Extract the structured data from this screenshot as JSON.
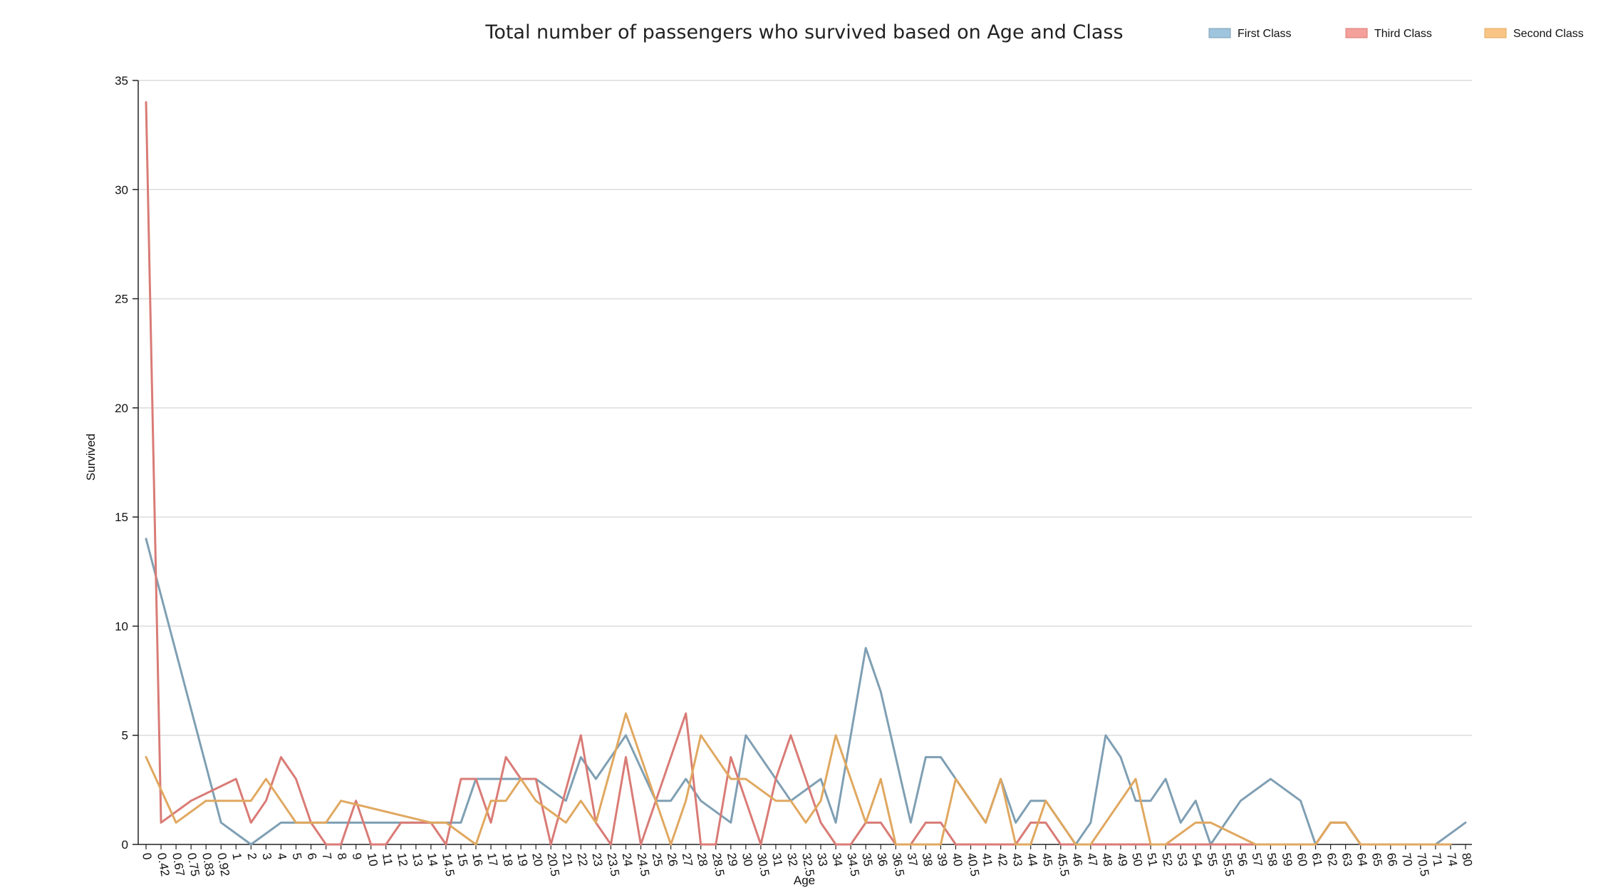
{
  "chart_data": {
    "type": "line",
    "title": "Total number of passengers who survived based on Age and Class",
    "xlabel": "Age",
    "ylabel": "Survived",
    "ylim": [
      0,
      35
    ],
    "yticks": [
      0,
      5,
      10,
      15,
      20,
      25,
      30,
      35
    ],
    "grid": "horizontal",
    "legend_position": "top-right",
    "categories": [
      "0",
      "0.42",
      "0.67",
      "0.75",
      "0.83",
      "0.92",
      "1",
      "2",
      "3",
      "4",
      "5",
      "6",
      "7",
      "8",
      "9",
      "10",
      "11",
      "12",
      "13",
      "14",
      "14.5",
      "15",
      "16",
      "17",
      "18",
      "19",
      "20",
      "20.5",
      "21",
      "22",
      "23",
      "23.5",
      "24",
      "24.5",
      "25",
      "26",
      "27",
      "28",
      "28.5",
      "29",
      "30",
      "30.5",
      "31",
      "32",
      "32.5",
      "33",
      "34",
      "34.5",
      "35",
      "36",
      "36.5",
      "37",
      "38",
      "39",
      "40",
      "40.5",
      "41",
      "42",
      "43",
      "44",
      "45",
      "45.5",
      "46",
      "47",
      "48",
      "49",
      "50",
      "51",
      "52",
      "53",
      "54",
      "55",
      "55.5",
      "56",
      "57",
      "58",
      "59",
      "60",
      "61",
      "62",
      "63",
      "64",
      "65",
      "66",
      "70",
      "70.5",
      "71",
      "74",
      "80"
    ],
    "series": [
      {
        "name": "First Class",
        "color": "#7f9fb3",
        "legend_color": "#9ec4de",
        "values": [
          14,
          null,
          null,
          null,
          null,
          1,
          null,
          0,
          null,
          1,
          1,
          1,
          1,
          1,
          1,
          1,
          1,
          1,
          1,
          1,
          1,
          1,
          3,
          3,
          3,
          3,
          3,
          null,
          2,
          4,
          3,
          null,
          5,
          null,
          2,
          2,
          3,
          2,
          null,
          1,
          5,
          null,
          null,
          2,
          null,
          3,
          1,
          null,
          9,
          7,
          null,
          1,
          4,
          4,
          3,
          null,
          1,
          3,
          1,
          2,
          2,
          null,
          0,
          1,
          5,
          4,
          2,
          2,
          3,
          1,
          2,
          0,
          null,
          2,
          null,
          3,
          null,
          2,
          0,
          1,
          1,
          0,
          null,
          0,
          0,
          null,
          0,
          null,
          1
        ]
      },
      {
        "name": "Third Class",
        "color": "#d97b76",
        "legend_color": "#f4a09b",
        "values": [
          34,
          1,
          null,
          2,
          null,
          null,
          3,
          1,
          2,
          4,
          3,
          1,
          0,
          0,
          2,
          0,
          0,
          1,
          1,
          1,
          0,
          3,
          3,
          1,
          4,
          3,
          3,
          0,
          null,
          5,
          1,
          0,
          4,
          0,
          2,
          4,
          6,
          0,
          0,
          4,
          2,
          0,
          3,
          5,
          null,
          1,
          0,
          0,
          1,
          1,
          0,
          0,
          1,
          1,
          0,
          0,
          0,
          0,
          0,
          1,
          1,
          0,
          0,
          0,
          0,
          0,
          0,
          0,
          0,
          0,
          0,
          0,
          0,
          0,
          0,
          0,
          0,
          0,
          0,
          1,
          1,
          0,
          0,
          0,
          0,
          0,
          0,
          0,
          null
        ]
      },
      {
        "name": "Second Class",
        "color": "#e0a860",
        "legend_color": "#f9c585",
        "values": [
          4,
          null,
          1,
          null,
          2,
          2,
          2,
          2,
          3,
          2,
          1,
          1,
          1,
          2,
          null,
          null,
          null,
          null,
          null,
          1,
          1,
          null,
          0,
          2,
          2,
          3,
          2,
          null,
          1,
          2,
          1,
          null,
          6,
          null,
          2,
          0,
          2,
          5,
          null,
          3,
          3,
          null,
          2,
          2,
          1,
          2,
          5,
          null,
          1,
          3,
          0,
          0,
          0,
          0,
          3,
          null,
          1,
          3,
          0,
          0,
          2,
          null,
          0,
          0,
          null,
          null,
          3,
          0,
          0,
          null,
          1,
          1,
          null,
          null,
          0,
          0,
          0,
          0,
          0,
          1,
          1,
          0,
          0,
          0,
          0,
          0,
          0,
          0,
          null
        ]
      }
    ]
  }
}
